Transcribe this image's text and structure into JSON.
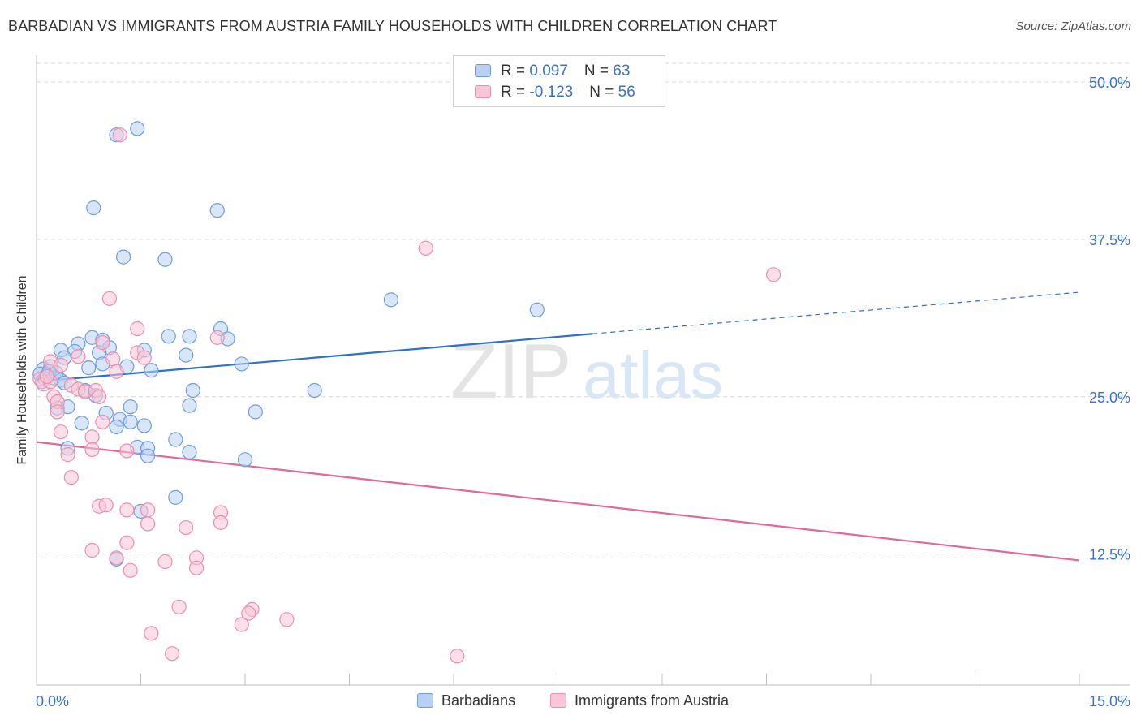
{
  "title": "BARBADIAN VS IMMIGRANTS FROM AUSTRIA FAMILY HOUSEHOLDS WITH CHILDREN CORRELATION CHART",
  "source": "Source: ZipAtlas.com",
  "watermark": {
    "zip": "ZIP",
    "atlas": "atlas"
  },
  "colors": {
    "blue_fill": "#b8d1f3",
    "blue_stroke": "#6f9de0",
    "blue_line": "#2f6fcf",
    "pink_fill": "#fac5d6",
    "pink_stroke": "#ec8fad",
    "pink_line": "#e2679a",
    "tick_label": "#3a72c8",
    "grid": "#d8d8d8"
  },
  "legend": {
    "rows": [
      {
        "r_label": "R = ",
        "r_value": "0.097",
        "n_label": "N = ",
        "n_value": "63"
      },
      {
        "r_label": "R = ",
        "r_value": "-0.123",
        "n_label": "N = ",
        "n_value": "56"
      }
    ]
  },
  "bottom_legend": {
    "blue_label": "Barbadians",
    "pink_label": "Immigrants from Austria"
  },
  "chart_data": {
    "type": "scatter",
    "title": "BARBADIAN VS IMMIGRANTS FROM AUSTRIA FAMILY HOUSEHOLDS WITH CHILDREN CORRELATION CHART",
    "xlabel": "",
    "ylabel": "Family Households with Children",
    "xlim": [
      0,
      15
    ],
    "ylim": [
      3,
      52
    ],
    "x_tick_labels": [
      {
        "x": 0,
        "label": "0.0%"
      },
      {
        "x": 15,
        "label": "15.0%"
      }
    ],
    "x_minor_ticks": [
      1.5,
      3,
      4.5,
      6,
      7.5,
      9,
      10.5,
      12,
      13.5
    ],
    "y_ticks": [
      {
        "y": 12.5,
        "label": "12.5%"
      },
      {
        "y": 25.0,
        "label": "25.0%"
      },
      {
        "y": 37.5,
        "label": "37.5%"
      },
      {
        "y": 50.0,
        "label": "50.0%"
      }
    ],
    "grid": true,
    "series": [
      {
        "name": "Barbadians",
        "color": "#6f9de0",
        "r": 0.097,
        "n": 63,
        "trend": {
          "x0": 0,
          "y0": 26.2,
          "x1": 8.0,
          "y1": 30.0,
          "dash_to_x": 15,
          "dash_to_y": 33.3
        },
        "points": [
          [
            1.45,
            46.3
          ],
          [
            1.15,
            45.8
          ],
          [
            0.82,
            40.0
          ],
          [
            2.6,
            39.8
          ],
          [
            1.25,
            36.1
          ],
          [
            1.85,
            35.9
          ],
          [
            5.1,
            32.7
          ],
          [
            7.2,
            31.9
          ],
          [
            2.65,
            30.4
          ],
          [
            0.8,
            29.7
          ],
          [
            0.95,
            29.5
          ],
          [
            1.9,
            29.8
          ],
          [
            2.2,
            29.8
          ],
          [
            2.75,
            29.6
          ],
          [
            0.6,
            29.2
          ],
          [
            0.35,
            28.7
          ],
          [
            1.05,
            28.9
          ],
          [
            1.55,
            28.7
          ],
          [
            0.55,
            28.6
          ],
          [
            0.9,
            28.5
          ],
          [
            0.4,
            28.1
          ],
          [
            2.15,
            28.3
          ],
          [
            0.2,
            27.4
          ],
          [
            0.1,
            27.2
          ],
          [
            0.75,
            27.3
          ],
          [
            0.95,
            27.6
          ],
          [
            1.3,
            27.4
          ],
          [
            1.65,
            27.1
          ],
          [
            2.95,
            27.6
          ],
          [
            0.05,
            26.8
          ],
          [
            0.25,
            26.5
          ],
          [
            0.35,
            26.3
          ],
          [
            0.15,
            26.7
          ],
          [
            0.08,
            26.2
          ],
          [
            0.7,
            25.5
          ],
          [
            0.85,
            25.1
          ],
          [
            2.25,
            25.5
          ],
          [
            4.0,
            25.5
          ],
          [
            0.3,
            24.1
          ],
          [
            0.45,
            24.2
          ],
          [
            1.35,
            24.2
          ],
          [
            2.2,
            24.3
          ],
          [
            3.15,
            23.8
          ],
          [
            1.0,
            23.7
          ],
          [
            1.2,
            23.2
          ],
          [
            1.35,
            23.0
          ],
          [
            0.65,
            22.9
          ],
          [
            1.15,
            22.6
          ],
          [
            1.55,
            22.7
          ],
          [
            0.45,
            20.9
          ],
          [
            1.45,
            21.0
          ],
          [
            1.6,
            20.9
          ],
          [
            1.6,
            20.3
          ],
          [
            2.0,
            21.6
          ],
          [
            2.2,
            20.6
          ],
          [
            3.0,
            20.0
          ],
          [
            2.0,
            17.0
          ],
          [
            1.5,
            15.9
          ],
          [
            1.15,
            12.1
          ],
          [
            0.12,
            26.4
          ],
          [
            0.18,
            27.0
          ],
          [
            0.28,
            26.9
          ],
          [
            0.4,
            26.1
          ]
        ]
      },
      {
        "name": "Immigrants from Austria",
        "color": "#ec8fad",
        "r": -0.123,
        "n": 56,
        "trend": {
          "x0": 0,
          "y0": 21.4,
          "x1": 15,
          "y1": 12.0
        },
        "points": [
          [
            1.2,
            45.8
          ],
          [
            5.6,
            36.8
          ],
          [
            10.6,
            34.7
          ],
          [
            1.05,
            32.8
          ],
          [
            1.45,
            30.4
          ],
          [
            2.6,
            29.7
          ],
          [
            0.95,
            29.3
          ],
          [
            1.45,
            28.5
          ],
          [
            0.6,
            28.2
          ],
          [
            1.1,
            28.0
          ],
          [
            1.55,
            28.1
          ],
          [
            0.2,
            27.8
          ],
          [
            0.35,
            27.5
          ],
          [
            1.15,
            27.0
          ],
          [
            0.05,
            26.4
          ],
          [
            0.1,
            26.0
          ],
          [
            0.2,
            26.2
          ],
          [
            0.5,
            25.9
          ],
          [
            0.6,
            25.6
          ],
          [
            0.7,
            25.4
          ],
          [
            0.85,
            25.5
          ],
          [
            0.9,
            25.0
          ],
          [
            0.25,
            25.0
          ],
          [
            0.3,
            24.6
          ],
          [
            0.3,
            23.8
          ],
          [
            0.95,
            23.0
          ],
          [
            0.35,
            22.2
          ],
          [
            0.8,
            21.8
          ],
          [
            0.45,
            20.4
          ],
          [
            0.8,
            20.8
          ],
          [
            1.3,
            20.7
          ],
          [
            0.5,
            18.6
          ],
          [
            0.9,
            16.3
          ],
          [
            1.0,
            16.4
          ],
          [
            1.3,
            16.0
          ],
          [
            1.6,
            16.0
          ],
          [
            2.65,
            15.8
          ],
          [
            1.6,
            14.9
          ],
          [
            2.65,
            15.0
          ],
          [
            2.15,
            14.6
          ],
          [
            1.3,
            13.4
          ],
          [
            0.8,
            12.8
          ],
          [
            1.85,
            11.9
          ],
          [
            2.3,
            12.2
          ],
          [
            1.15,
            12.2
          ],
          [
            2.3,
            11.4
          ],
          [
            1.35,
            11.2
          ],
          [
            2.05,
            8.3
          ],
          [
            3.1,
            8.1
          ],
          [
            3.05,
            7.8
          ],
          [
            3.6,
            7.3
          ],
          [
            2.95,
            6.9
          ],
          [
            1.65,
            6.2
          ],
          [
            1.95,
            4.6
          ],
          [
            6.05,
            4.4
          ],
          [
            0.15,
            26.6
          ]
        ]
      }
    ]
  }
}
